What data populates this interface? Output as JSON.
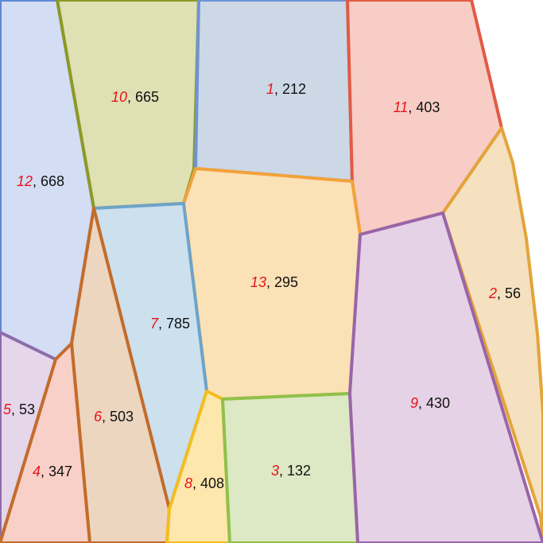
{
  "cells": [
    {
      "id": "1",
      "value": "212",
      "fill": "#ccd8e6",
      "stroke": "#6e94d6"
    },
    {
      "id": "2",
      "value": "56",
      "fill": "#f5e0c0",
      "stroke": "#e3a43a"
    },
    {
      "id": "3",
      "value": "132",
      "fill": "#dde8c4",
      "stroke": "#8fc14a"
    },
    {
      "id": "4",
      "value": "347",
      "fill": "#f8d0c8",
      "stroke": "#c46c2a"
    },
    {
      "id": "5",
      "value": "53",
      "fill": "#e5d6ea",
      "stroke": "#8f6cab"
    },
    {
      "id": "6",
      "value": "503",
      "fill": "#edd6c0",
      "stroke": "#c46c2a"
    },
    {
      "id": "7",
      "value": "785",
      "fill": "#cce0ee",
      "stroke": "#6ea3c8"
    },
    {
      "id": "8",
      "value": "408",
      "fill": "#fde7ad",
      "stroke": "#f4bd1f"
    },
    {
      "id": "9",
      "value": "430",
      "fill": "#e6d2e6",
      "stroke": "#9a65a8"
    },
    {
      "id": "10",
      "value": "665",
      "fill": "#dfe0b4",
      "stroke": "#8c9a24"
    },
    {
      "id": "11",
      "value": "403",
      "fill": "#f7cdc6",
      "stroke": "#e35a43"
    },
    {
      "id": "12",
      "value": "668",
      "fill": "#d3ddf3",
      "stroke": "#5f86d6"
    },
    {
      "id": "13",
      "value": "295",
      "fill": "#fbe1b6",
      "stroke": "#f2a23a"
    }
  ]
}
